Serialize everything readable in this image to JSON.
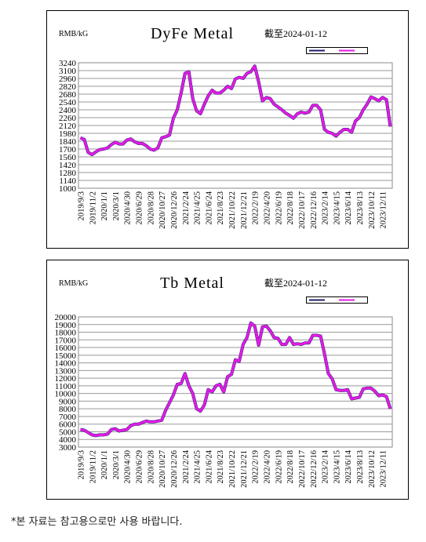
{
  "chart_data": [
    {
      "type": "line",
      "title": "DyFe Metal",
      "unit_label": "RMB/kG",
      "date_note": "截至2024-01-12",
      "categories": [
        "2019/9/3",
        null,
        null,
        "2019/11/2",
        null,
        null,
        "2020/1/1",
        null,
        null,
        "2020/3/1",
        null,
        null,
        "2020/4/30",
        null,
        null,
        "2020/6/29",
        null,
        null,
        "2020/8/28",
        null,
        null,
        "2020/10/27",
        null,
        null,
        "2020/12/26",
        null,
        null,
        "2021/2/24",
        null,
        null,
        "2021/4/25",
        null,
        null,
        "2021/6/24",
        null,
        null,
        "2021/8/23",
        null,
        null,
        "2021/10/22",
        null,
        null,
        "2021/12/21",
        null,
        null,
        "2022/2/19",
        null,
        null,
        "2022/4/20",
        null,
        null,
        "2022/6/19",
        null,
        null,
        "2022/8/18",
        null,
        null,
        "2022/10/17",
        null,
        null,
        "2022/12/16",
        null,
        null,
        "2023/2/14",
        null,
        null,
        "2023/4/15",
        null,
        null,
        "2023/6/14",
        null,
        null,
        "2023/8/13",
        null,
        null,
        "2023/10/12",
        null,
        null,
        "2023/12/11",
        null,
        null
      ],
      "series": [
        {
          "color": "#1f1f6e",
          "values": [
            1900,
            1870,
            1640,
            1600,
            1650,
            1690,
            1700,
            1720,
            1780,
            1820,
            1790,
            1790,
            1860,
            1880,
            1830,
            1800,
            1800,
            1760,
            1700,
            1680,
            1720,
            1900,
            1920,
            1950,
            2250,
            2400,
            2700,
            3050,
            3080,
            2600,
            2380,
            2330,
            2500,
            2650,
            2750,
            2700,
            2700,
            2750,
            2820,
            2780,
            2950,
            2980,
            2960,
            3050,
            3080,
            3180,
            2900,
            2560,
            2620,
            2600,
            2500,
            2450,
            2400,
            2340,
            2300,
            2250,
            2330,
            2360,
            2340,
            2360,
            2480,
            2480,
            2400,
            2050,
            2000,
            1980,
            1930,
            2000,
            2050,
            2050,
            2000,
            2200,
            2260,
            2400,
            2500,
            2630,
            2600,
            2560,
            2620,
            2580,
            2100
          ]
        },
        {
          "color": "#e619e6",
          "values": [
            1900,
            1870,
            1640,
            1600,
            1650,
            1690,
            1700,
            1720,
            1780,
            1820,
            1790,
            1790,
            1860,
            1880,
            1830,
            1800,
            1800,
            1760,
            1700,
            1680,
            1720,
            1900,
            1920,
            1950,
            2250,
            2400,
            2700,
            3050,
            3080,
            2600,
            2380,
            2330,
            2500,
            2650,
            2750,
            2700,
            2700,
            2750,
            2820,
            2780,
            2950,
            2980,
            2960,
            3050,
            3080,
            3180,
            2900,
            2560,
            2620,
            2600,
            2500,
            2450,
            2400,
            2340,
            2300,
            2250,
            2330,
            2360,
            2340,
            2360,
            2480,
            2480,
            2400,
            2050,
            2000,
            1980,
            1930,
            2000,
            2050,
            2050,
            2000,
            2200,
            2260,
            2400,
            2500,
            2630,
            2600,
            2560,
            2620,
            2580,
            2100
          ]
        }
      ],
      "ylim": [
        1000,
        3240
      ],
      "yticks": [
        1000,
        1140,
        1280,
        1420,
        1560,
        1700,
        1840,
        1980,
        2120,
        2260,
        2400,
        2540,
        2680,
        2820,
        2960,
        3100,
        3240
      ],
      "grid": true
    },
    {
      "type": "line",
      "title": "Tb Metal",
      "unit_label": "RMB/kG",
      "date_note": "截至2024-01-12",
      "categories": [
        "2019/9/3",
        null,
        null,
        "2019/11/2",
        null,
        null,
        "2020/1/1",
        null,
        null,
        "2020/3/1",
        null,
        null,
        "2020/4/30",
        null,
        null,
        "2020/6/29",
        null,
        null,
        "2020/8/28",
        null,
        null,
        "2020/10/27",
        null,
        null,
        "2020/12/26",
        null,
        null,
        "2021/2/24",
        null,
        null,
        "2021/4/25",
        null,
        null,
        "2021/6/24",
        null,
        null,
        "2021/8/23",
        null,
        null,
        "2021/10/22",
        null,
        null,
        "2021/12/21",
        null,
        null,
        "2022/2/19",
        null,
        null,
        "2022/4/20",
        null,
        null,
        "2022/6/19",
        null,
        null,
        "2022/8/18",
        null,
        null,
        "2022/10/17",
        null,
        null,
        "2022/12/16",
        null,
        null,
        "2023/2/14",
        null,
        null,
        "2023/4/15",
        null,
        null,
        "2023/6/14",
        null,
        null,
        "2023/8/13",
        null,
        null,
        "2023/10/12",
        null,
        null,
        "2023/12/11",
        null,
        null
      ],
      "series": [
        {
          "color": "#1f1f6e",
          "values": [
            5300,
            5200,
            4900,
            4600,
            4500,
            4600,
            4600,
            4700,
            5300,
            5400,
            5100,
            5200,
            5300,
            5800,
            6000,
            6000,
            6200,
            6400,
            6300,
            6300,
            6400,
            6500,
            7800,
            8800,
            9800,
            11200,
            11300,
            12600,
            11000,
            10000,
            8000,
            7700,
            8500,
            10500,
            10200,
            11000,
            11200,
            10200,
            12200,
            12500,
            14400,
            14200,
            16400,
            17300,
            19200,
            18800,
            16300,
            18700,
            18800,
            18200,
            17300,
            17200,
            16400,
            16400,
            17300,
            16400,
            16500,
            16400,
            16600,
            16600,
            17600,
            17600,
            17500,
            15200,
            12600,
            11900,
            10500,
            10400,
            10400,
            10500,
            9300,
            9400,
            9500,
            10600,
            10700,
            10700,
            10300,
            9700,
            9800,
            9600,
            8000
          ]
        },
        {
          "color": "#e619e6",
          "values": [
            5300,
            5200,
            4900,
            4600,
            4500,
            4600,
            4600,
            4700,
            5300,
            5400,
            5100,
            5200,
            5300,
            5800,
            6000,
            6000,
            6200,
            6400,
            6300,
            6300,
            6400,
            6500,
            7800,
            8800,
            9800,
            11200,
            11300,
            12600,
            11000,
            10000,
            8000,
            7700,
            8500,
            10500,
            10200,
            11000,
            11200,
            10200,
            12200,
            12500,
            14400,
            14200,
            16400,
            17300,
            19200,
            18800,
            16300,
            18700,
            18800,
            18200,
            17300,
            17200,
            16400,
            16400,
            17300,
            16400,
            16500,
            16400,
            16600,
            16600,
            17600,
            17600,
            17500,
            15200,
            12600,
            11900,
            10500,
            10400,
            10400,
            10500,
            9300,
            9400,
            9500,
            10600,
            10700,
            10700,
            10300,
            9700,
            9800,
            9600,
            8000
          ]
        }
      ],
      "ylim": [
        3000,
        20000
      ],
      "yticks": [
        3000,
        4000,
        5000,
        6000,
        7000,
        8000,
        9000,
        10000,
        11000,
        12000,
        13000,
        14000,
        15000,
        16000,
        17000,
        18000,
        19000,
        20000
      ],
      "grid": true
    }
  ],
  "footnote": "*본 자료는 참고용으로만 사용 바랍니다."
}
